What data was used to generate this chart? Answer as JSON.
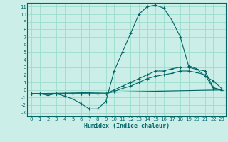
{
  "xlabel": "Humidex (Indice chaleur)",
  "xlim": [
    -0.5,
    23.5
  ],
  "ylim": [
    -3.5,
    11.5
  ],
  "xticks": [
    0,
    1,
    2,
    3,
    4,
    5,
    6,
    7,
    8,
    9,
    10,
    11,
    12,
    13,
    14,
    15,
    16,
    17,
    18,
    19,
    20,
    21,
    22,
    23
  ],
  "yticks": [
    -3,
    -2,
    -1,
    0,
    1,
    2,
    3,
    4,
    5,
    6,
    7,
    8,
    9,
    10,
    11
  ],
  "background_color": "#cceee8",
  "grid_color": "#99ddcc",
  "line_color": "#006666",
  "line1_x": [
    0,
    1,
    2,
    3,
    4,
    5,
    6,
    7,
    8,
    9,
    10,
    11,
    12,
    13,
    14,
    15,
    16,
    17,
    18,
    19,
    20,
    21,
    22,
    23
  ],
  "line1_y": [
    -0.5,
    -0.5,
    -0.7,
    -0.5,
    -0.8,
    -1.2,
    -1.8,
    -2.5,
    -2.5,
    -1.5,
    2.5,
    5.0,
    7.5,
    10.0,
    11.0,
    11.2,
    10.8,
    9.2,
    7.0,
    3.2,
    2.8,
    1.8,
    1.2,
    0.2
  ],
  "line2_x": [
    0,
    1,
    2,
    3,
    4,
    5,
    6,
    7,
    8,
    9,
    10,
    11,
    12,
    13,
    14,
    15,
    16,
    17,
    18,
    19,
    20,
    21,
    22,
    23
  ],
  "line2_y": [
    -0.5,
    -0.5,
    -0.5,
    -0.5,
    -0.5,
    -0.5,
    -0.5,
    -0.5,
    -0.5,
    -0.5,
    0.0,
    0.5,
    1.0,
    1.5,
    2.0,
    2.5,
    2.5,
    2.8,
    3.0,
    3.0,
    2.7,
    2.5,
    0.3,
    0.0
  ],
  "line3_x": [
    0,
    1,
    2,
    3,
    4,
    5,
    6,
    7,
    8,
    9,
    10,
    11,
    12,
    13,
    14,
    15,
    16,
    17,
    18,
    19,
    20,
    21,
    22,
    23
  ],
  "line3_y": [
    -0.5,
    -0.5,
    -0.5,
    -0.5,
    -0.5,
    -0.5,
    -0.5,
    -0.5,
    -0.5,
    -0.5,
    -0.2,
    0.2,
    0.5,
    1.0,
    1.5,
    1.8,
    2.0,
    2.2,
    2.5,
    2.5,
    2.3,
    2.0,
    0.2,
    0.0
  ],
  "line4_x": [
    0,
    23
  ],
  "line4_y": [
    -0.5,
    0.0
  ],
  "tick_fontsize": 5,
  "xlabel_fontsize": 6
}
